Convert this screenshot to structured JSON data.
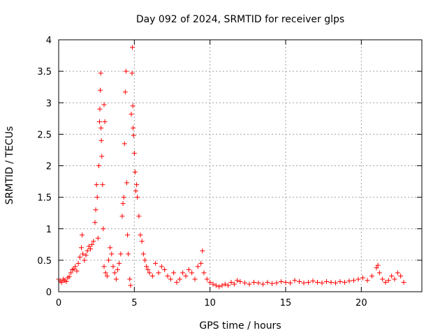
{
  "chart_data": {
    "type": "scatter",
    "title": "Day 092 of 2024, SRMTID for receiver glps",
    "xlabel": "GPS time / hours",
    "ylabel": "SRMTID / TECUs",
    "xlim": [
      0,
      24
    ],
    "ylim": [
      0,
      4
    ],
    "grid": true,
    "marker": "+",
    "series_color": "#ff0000",
    "x_ticks": [
      0,
      5,
      10,
      15,
      20
    ],
    "y_ticks": [
      0,
      0.5,
      1,
      1.5,
      2,
      2.5,
      3,
      3.5,
      4
    ],
    "x_tick_labels": [
      "0",
      "5",
      "10",
      "15",
      "20"
    ],
    "y_tick_labels": [
      "0",
      "0.5",
      "1",
      "1.5",
      "2",
      "2.5",
      "3",
      "3.5",
      "4"
    ],
    "points": [
      [
        0.0,
        0.2
      ],
      [
        0.1,
        0.17
      ],
      [
        0.2,
        0.15
      ],
      [
        0.3,
        0.2
      ],
      [
        0.4,
        0.18
      ],
      [
        0.5,
        0.16
      ],
      [
        0.6,
        0.22
      ],
      [
        0.7,
        0.24
      ],
      [
        0.8,
        0.3
      ],
      [
        0.9,
        0.35
      ],
      [
        1.0,
        0.36
      ],
      [
        1.1,
        0.4
      ],
      [
        1.2,
        0.33
      ],
      [
        1.3,
        0.45
      ],
      [
        1.4,
        0.55
      ],
      [
        1.5,
        0.7
      ],
      [
        1.55,
        0.9
      ],
      [
        1.6,
        0.6
      ],
      [
        1.7,
        0.5
      ],
      [
        1.8,
        0.58
      ],
      [
        1.9,
        0.65
      ],
      [
        2.0,
        0.72
      ],
      [
        2.1,
        0.68
      ],
      [
        2.2,
        0.75
      ],
      [
        2.3,
        0.8
      ],
      [
        2.4,
        1.1
      ],
      [
        2.45,
        1.3
      ],
      [
        2.5,
        1.7
      ],
      [
        2.55,
        1.5
      ],
      [
        2.6,
        0.85
      ],
      [
        2.65,
        2.0
      ],
      [
        2.7,
        2.7
      ],
      [
        2.72,
        2.9
      ],
      [
        2.75,
        3.2
      ],
      [
        2.78,
        3.47
      ],
      [
        2.8,
        2.6
      ],
      [
        2.82,
        2.4
      ],
      [
        2.85,
        2.15
      ],
      [
        2.9,
        1.7
      ],
      [
        2.95,
        1.0
      ],
      [
        3.0,
        0.4
      ],
      [
        3.0,
        2.97
      ],
      [
        3.05,
        2.7
      ],
      [
        3.1,
        0.3
      ],
      [
        3.2,
        0.25
      ],
      [
        3.3,
        0.5
      ],
      [
        3.4,
        0.7
      ],
      [
        3.5,
        0.6
      ],
      [
        3.6,
        0.4
      ],
      [
        3.7,
        0.3
      ],
      [
        3.8,
        0.2
      ],
      [
        3.9,
        0.35
      ],
      [
        4.0,
        0.45
      ],
      [
        4.1,
        0.6
      ],
      [
        4.2,
        1.2
      ],
      [
        4.25,
        1.4
      ],
      [
        4.3,
        1.5
      ],
      [
        4.35,
        2.35
      ],
      [
        4.4,
        3.17
      ],
      [
        4.45,
        3.5
      ],
      [
        4.5,
        1.73
      ],
      [
        4.55,
        0.9
      ],
      [
        4.6,
        0.6
      ],
      [
        4.7,
        0.2
      ],
      [
        4.75,
        0.1
      ],
      [
        4.8,
        2.82
      ],
      [
        4.85,
        3.47
      ],
      [
        4.87,
        3.88
      ],
      [
        4.9,
        2.95
      ],
      [
        4.92,
        2.6
      ],
      [
        4.95,
        2.48
      ],
      [
        5.0,
        2.2
      ],
      [
        5.05,
        1.9
      ],
      [
        5.1,
        1.6
      ],
      [
        5.15,
        1.7
      ],
      [
        5.2,
        1.5
      ],
      [
        5.3,
        1.2
      ],
      [
        5.4,
        0.9
      ],
      [
        5.5,
        0.8
      ],
      [
        5.6,
        0.6
      ],
      [
        5.7,
        0.5
      ],
      [
        5.8,
        0.4
      ],
      [
        5.9,
        0.35
      ],
      [
        6.0,
        0.3
      ],
      [
        6.2,
        0.25
      ],
      [
        6.4,
        0.45
      ],
      [
        6.6,
        0.3
      ],
      [
        6.8,
        0.4
      ],
      [
        7.0,
        0.35
      ],
      [
        7.2,
        0.25
      ],
      [
        7.4,
        0.2
      ],
      [
        7.6,
        0.3
      ],
      [
        7.8,
        0.15
      ],
      [
        8.0,
        0.2
      ],
      [
        8.2,
        0.3
      ],
      [
        8.4,
        0.25
      ],
      [
        8.6,
        0.35
      ],
      [
        8.8,
        0.3
      ],
      [
        9.0,
        0.2
      ],
      [
        9.2,
        0.4
      ],
      [
        9.4,
        0.45
      ],
      [
        9.5,
        0.65
      ],
      [
        9.6,
        0.3
      ],
      [
        9.8,
        0.2
      ],
      [
        10.0,
        0.15
      ],
      [
        10.2,
        0.12
      ],
      [
        10.4,
        0.1
      ],
      [
        10.6,
        0.08
      ],
      [
        10.8,
        0.1
      ],
      [
        11.0,
        0.12
      ],
      [
        11.2,
        0.1
      ],
      [
        11.4,
        0.15
      ],
      [
        11.6,
        0.12
      ],
      [
        11.8,
        0.18
      ],
      [
        12.0,
        0.16
      ],
      [
        12.3,
        0.14
      ],
      [
        12.6,
        0.12
      ],
      [
        12.9,
        0.15
      ],
      [
        13.2,
        0.14
      ],
      [
        13.5,
        0.12
      ],
      [
        13.8,
        0.15
      ],
      [
        14.1,
        0.13
      ],
      [
        14.4,
        0.14
      ],
      [
        14.7,
        0.16
      ],
      [
        15.0,
        0.15
      ],
      [
        15.3,
        0.14
      ],
      [
        15.6,
        0.18
      ],
      [
        15.9,
        0.16
      ],
      [
        16.2,
        0.14
      ],
      [
        16.5,
        0.15
      ],
      [
        16.8,
        0.17
      ],
      [
        17.1,
        0.15
      ],
      [
        17.4,
        0.14
      ],
      [
        17.7,
        0.16
      ],
      [
        18.0,
        0.15
      ],
      [
        18.3,
        0.14
      ],
      [
        18.6,
        0.16
      ],
      [
        18.9,
        0.15
      ],
      [
        19.2,
        0.17
      ],
      [
        19.5,
        0.18
      ],
      [
        19.8,
        0.2
      ],
      [
        20.1,
        0.22
      ],
      [
        20.4,
        0.18
      ],
      [
        20.7,
        0.25
      ],
      [
        21.0,
        0.38
      ],
      [
        21.1,
        0.42
      ],
      [
        21.2,
        0.3
      ],
      [
        21.4,
        0.2
      ],
      [
        21.6,
        0.15
      ],
      [
        21.8,
        0.18
      ],
      [
        22.0,
        0.25
      ],
      [
        22.2,
        0.2
      ],
      [
        22.4,
        0.3
      ],
      [
        22.6,
        0.25
      ],
      [
        22.8,
        0.15
      ]
    ]
  }
}
